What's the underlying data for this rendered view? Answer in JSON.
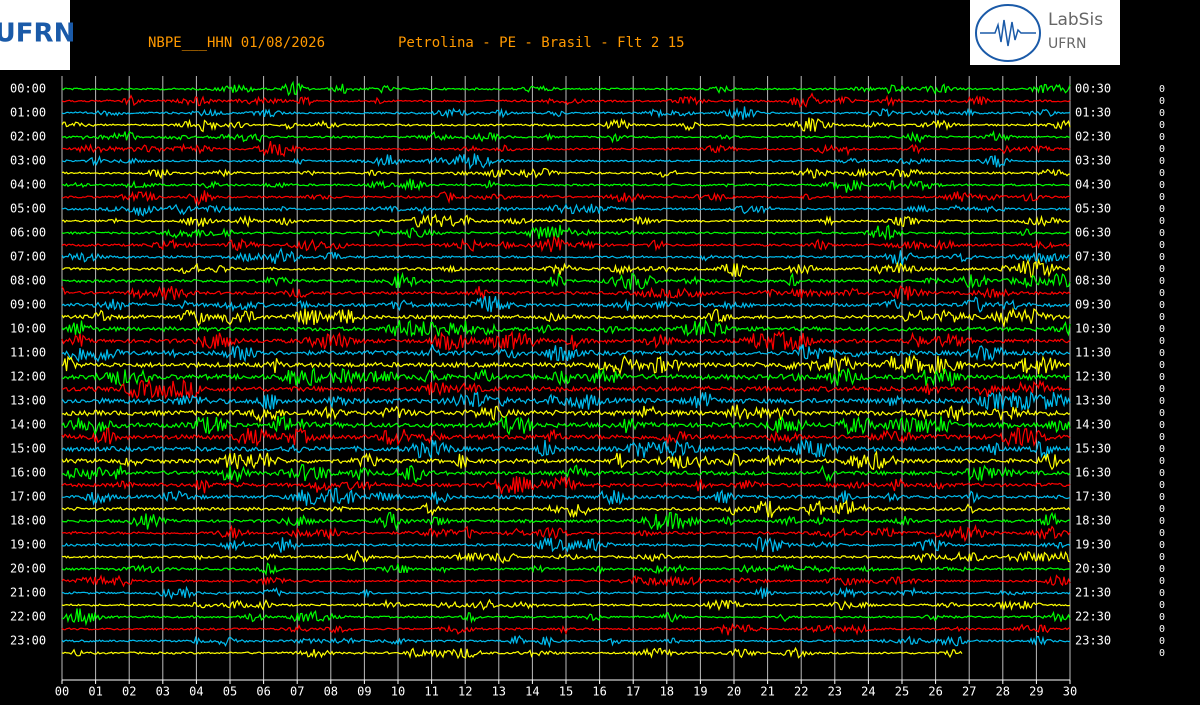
{
  "chart_data": {
    "type": "helicorder",
    "title": "NBPE___HHN 01/08/2026",
    "subtitle": "Petrolina - PE - Brasil - Flt 2 15",
    "logo_left": "UFRN",
    "logo_right_top": "LabSis",
    "logo_right_bottom": "UFRN",
    "row_colors": [
      "#00ff00",
      "#ff0000",
      "#00bbee",
      "#ffff00"
    ],
    "left_labels": [
      "00:00",
      "01:00",
      "02:00",
      "03:00",
      "04:00",
      "05:00",
      "06:00",
      "07:00",
      "08:00",
      "09:00",
      "10:00",
      "11:00",
      "12:00",
      "13:00",
      "14:00",
      "15:00",
      "16:00",
      "17:00",
      "18:00",
      "19:00",
      "20:00",
      "21:00",
      "22:00",
      "23:00"
    ],
    "right_labels": [
      "00:30",
      "01:30",
      "02:30",
      "03:30",
      "04:30",
      "05:30",
      "06:30",
      "07:30",
      "08:30",
      "09:30",
      "10:30",
      "11:30",
      "12:30",
      "13:30",
      "14:30",
      "15:30",
      "16:30",
      "17:30",
      "18:30",
      "19:30",
      "20:30",
      "21:30",
      "22:30",
      "23:30"
    ],
    "row_counts": [
      0,
      0,
      0,
      0,
      0,
      0,
      0,
      0,
      0,
      0,
      0,
      0,
      0,
      0,
      0,
      0,
      0,
      0,
      0,
      0,
      0,
      0,
      0,
      0,
      0,
      0,
      0,
      0,
      0,
      0,
      0,
      0,
      0,
      0,
      0,
      0,
      0,
      0,
      0,
      0,
      0,
      0,
      0,
      0,
      0,
      0,
      0,
      0
    ],
    "xlim": [
      0,
      30
    ],
    "xticks": [
      {
        "value": 0,
        "label": "00"
      },
      {
        "value": 1,
        "label": "01"
      },
      {
        "value": 2,
        "label": "02"
      },
      {
        "value": 3,
        "label": "03"
      },
      {
        "value": 4,
        "label": "04"
      },
      {
        "value": 5,
        "label": "05"
      },
      {
        "value": 6,
        "label": "06"
      },
      {
        "value": 7,
        "label": "07"
      },
      {
        "value": 8,
        "label": "08"
      },
      {
        "value": 9,
        "label": "09"
      },
      {
        "value": 10,
        "label": "10"
      },
      {
        "value": 11,
        "label": "11"
      },
      {
        "value": 12,
        "label": "12"
      },
      {
        "value": 13,
        "label": "13"
      },
      {
        "value": 14,
        "label": "14"
      },
      {
        "value": 15,
        "label": "15"
      },
      {
        "value": 16,
        "label": "16"
      },
      {
        "value": 17,
        "label": "17"
      },
      {
        "value": 18,
        "label": "18"
      },
      {
        "value": 19,
        "label": "19"
      },
      {
        "value": 20,
        "label": "20"
      },
      {
        "value": 21,
        "label": "21"
      },
      {
        "value": 22,
        "label": "22"
      },
      {
        "value": 23,
        "label": "23"
      },
      {
        "value": 24,
        "label": "24"
      },
      {
        "value": 25,
        "label": "25"
      },
      {
        "value": 26,
        "label": "26"
      },
      {
        "value": 27,
        "label": "27"
      },
      {
        "value": 28,
        "label": "28"
      },
      {
        "value": 29,
        "label": "29"
      },
      {
        "value": 30,
        "label": "30"
      }
    ],
    "last_trace_end": 26.8,
    "grid": true
  }
}
